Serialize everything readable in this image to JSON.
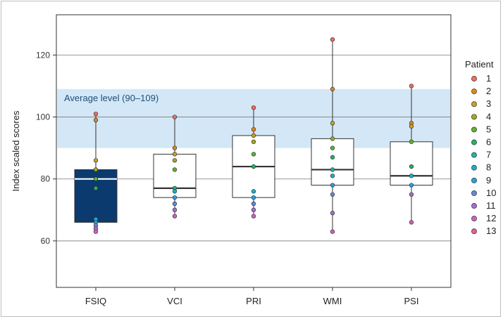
{
  "chart_data": {
    "type": "boxplot",
    "ylabel": "Index scaled scores",
    "xlabel": "",
    "ylim": [
      45,
      133
    ],
    "yticks": [
      60,
      80,
      100,
      120
    ],
    "grid": true,
    "reference_band": {
      "from": 90,
      "to": 109,
      "label": "Average level (90–109)",
      "color": "#d3e7f6",
      "text_color": "#1f4e79"
    },
    "categories": [
      "FSIQ",
      "VCI",
      "PRI",
      "WMI",
      "PSI"
    ],
    "boxes": [
      {
        "category": "FSIQ",
        "q1": 66,
        "median": 80,
        "q3": 83,
        "whisker_low": 63,
        "whisker_high": 101,
        "fill": "#0b3a6e",
        "median_color": "#ffffff"
      },
      {
        "category": "VCI",
        "q1": 74,
        "median": 77,
        "q3": 88,
        "whisker_low": 68,
        "whisker_high": 100,
        "fill": "#ffffff",
        "median_color": "#333333"
      },
      {
        "category": "PRI",
        "q1": 74,
        "median": 84,
        "q3": 94,
        "whisker_low": 68,
        "whisker_high": 103,
        "fill": "#ffffff",
        "median_color": "#333333"
      },
      {
        "category": "WMI",
        "q1": 78,
        "median": 83,
        "q3": 93,
        "whisker_low": 63,
        "whisker_high": 125,
        "fill": "#ffffff",
        "median_color": "#333333"
      },
      {
        "category": "PSI",
        "q1": 78,
        "median": 81,
        "q3": 92,
        "whisker_low": 66,
        "whisker_high": 110,
        "fill": "#ffffff",
        "median_color": "#333333"
      }
    ],
    "points": [
      {
        "category": "FSIQ",
        "values": [
          101,
          99,
          86,
          83,
          80,
          77,
          67,
          66,
          65,
          64,
          63
        ]
      },
      {
        "category": "VCI",
        "values": [
          100,
          90,
          88,
          86,
          83,
          77,
          76,
          74,
          72,
          70,
          68
        ]
      },
      {
        "category": "PRI",
        "values": [
          103,
          96,
          94,
          92,
          88,
          84,
          76,
          74,
          72,
          70,
          68
        ]
      },
      {
        "category": "WMI",
        "values": [
          125,
          109,
          98,
          93,
          90,
          87,
          83,
          81,
          78,
          75,
          69,
          63
        ]
      },
      {
        "category": "PSI",
        "values": [
          110,
          98,
          97,
          92,
          84,
          81,
          78,
          75,
          66
        ]
      }
    ],
    "legend": {
      "title": "Patient",
      "position": "right",
      "entries": [
        {
          "label": "1",
          "color": "#ef6f61"
        },
        {
          "label": "2",
          "color": "#e0851f"
        },
        {
          "label": "3",
          "color": "#c9a227"
        },
        {
          "label": "4",
          "color": "#a3a920"
        },
        {
          "label": "5",
          "color": "#5fb332"
        },
        {
          "label": "6",
          "color": "#22b368"
        },
        {
          "label": "7",
          "color": "#1fb5a2"
        },
        {
          "label": "8",
          "color": "#1eaec7"
        },
        {
          "label": "9",
          "color": "#2aa0e0"
        },
        {
          "label": "10",
          "color": "#6a86d8"
        },
        {
          "label": "11",
          "color": "#a070d0"
        },
        {
          "label": "12",
          "color": "#d35fc0"
        },
        {
          "label": "13",
          "color": "#ec5c94"
        }
      ]
    }
  }
}
